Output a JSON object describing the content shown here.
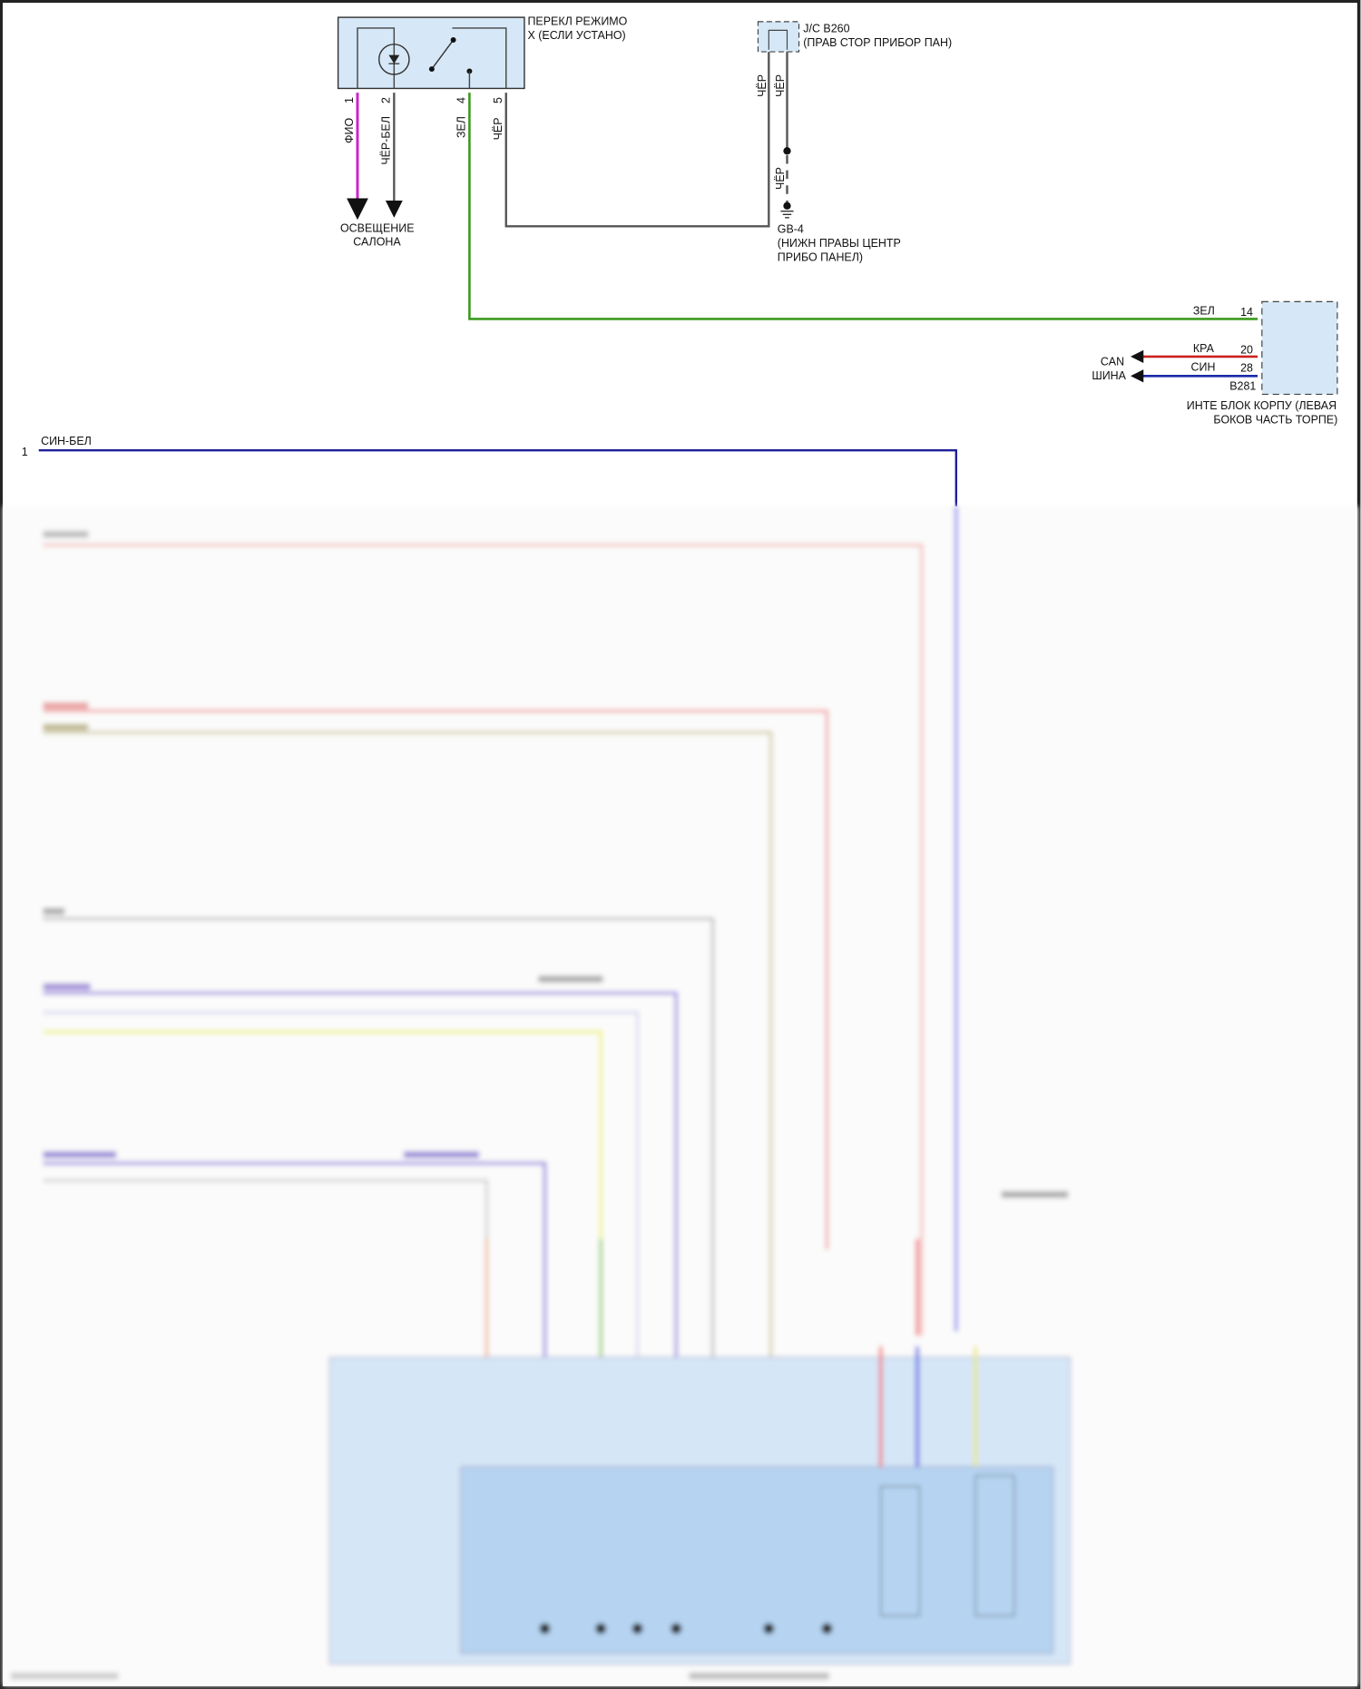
{
  "switch": {
    "title_line1": "ПЕРЕКЛ РЕЖИМО",
    "title_line2": "Х (ЕСЛИ УСТАНО)",
    "pins": [
      "1",
      "2",
      "4",
      "5"
    ],
    "wires": [
      "ФИО",
      "ЧЁР-БЕЛ",
      "ЗЕЛ",
      "ЧЁР"
    ]
  },
  "interior_light": {
    "line1": "ОСВЕЩЕНИЕ",
    "line2": "САЛОНА"
  },
  "junction": {
    "title_line1": "J/C B260",
    "title_line2": "(ПРАВ СТОР ПРИБОР ПАН)",
    "wire_left": "ЧЁР",
    "wire_right": "ЧЁР",
    "wire_ground": "ЧЁР"
  },
  "ground": {
    "name": "GB-4",
    "line1": "(НИЖН ПРАВЫ ЦЕНТР",
    "line2": "ПРИБО ПАНЕЛ)"
  },
  "body_unit": {
    "connector": "B281",
    "line1": "ИНТЕ БЛОК КОРПУ (ЛЕВАЯ",
    "line2": "БОКОВ ЧАСТЬ ТОРПЕ)",
    "pins": [
      {
        "pin": "14",
        "wire": "ЗЕЛ"
      },
      {
        "pin": "20",
        "wire": "КРА"
      },
      {
        "pin": "28",
        "wire": "СИН"
      }
    ],
    "can_line1": "CAN",
    "can_line2": "ШИНА"
  },
  "lower_wire": {
    "pin": "1",
    "color_label": "СИН-БЕЛ"
  },
  "colors": {
    "violet": "#cc22cc",
    "green": "#3c9a1e",
    "red": "#cc2020",
    "blue": "#1a2aa8",
    "navy": "#1e1e9a",
    "box_fill": "#d6e8f7",
    "inner_fill": "#b6d4f2"
  }
}
